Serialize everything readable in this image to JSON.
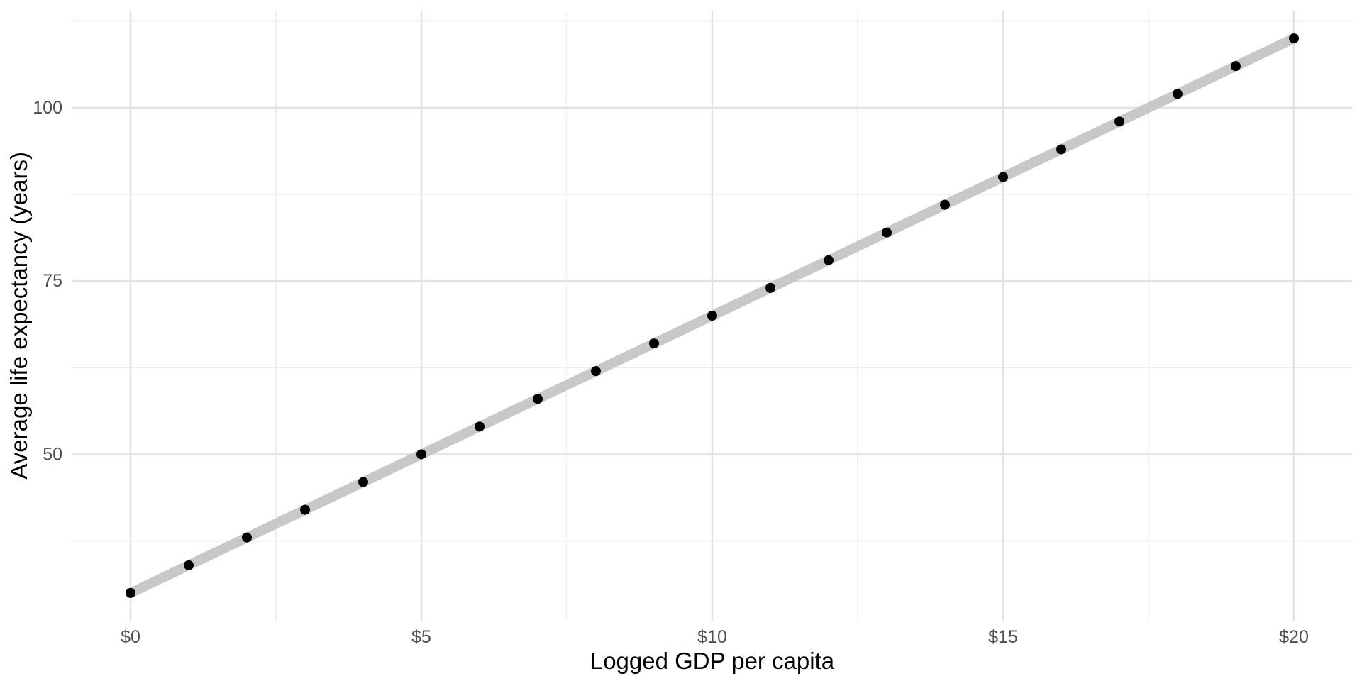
{
  "figure": {
    "background_color": "#ffffff"
  },
  "chart_data": {
    "type": "scatter",
    "title": "",
    "xlabel": "Logged GDP per capita",
    "ylabel": "Average life expectancy (years)",
    "x": [
      0,
      1,
      2,
      3,
      4,
      5,
      6,
      7,
      8,
      9,
      10,
      11,
      12,
      13,
      14,
      15,
      16,
      17,
      18,
      19,
      20
    ],
    "y": [
      30,
      34,
      38,
      42,
      46,
      50,
      54,
      58,
      62,
      66,
      70,
      74,
      78,
      82,
      86,
      90,
      94,
      98,
      102,
      106,
      110
    ],
    "trend_line": {
      "x1": 0,
      "y1": 30,
      "x2": 20,
      "y2": 110,
      "color": "#c8c8c8",
      "stroke_width": 14
    },
    "xlim": [
      -1,
      21
    ],
    "ylim": [
      26,
      114
    ],
    "x_ticks": {
      "values": [
        0,
        5,
        10,
        15,
        20
      ],
      "labels": [
        "$0",
        "$5",
        "$10",
        "$15",
        "$20"
      ],
      "minor": [
        2.5,
        7.5,
        12.5,
        17.5
      ]
    },
    "y_ticks": {
      "values": [
        50,
        75,
        100
      ],
      "labels": [
        "50",
        "75",
        "100"
      ],
      "minor": [
        37.5,
        62.5,
        87.5,
        112.5
      ]
    },
    "grid": {
      "major_color": "#e2e2e2",
      "minor_color": "#ececec",
      "major_width": 2.5,
      "minor_width": 1.6
    },
    "point_color": "#000000",
    "point_radius": 7,
    "tick_label_color": "#4d4d4d",
    "axis_title_color": "#000000",
    "legend": "none"
  }
}
